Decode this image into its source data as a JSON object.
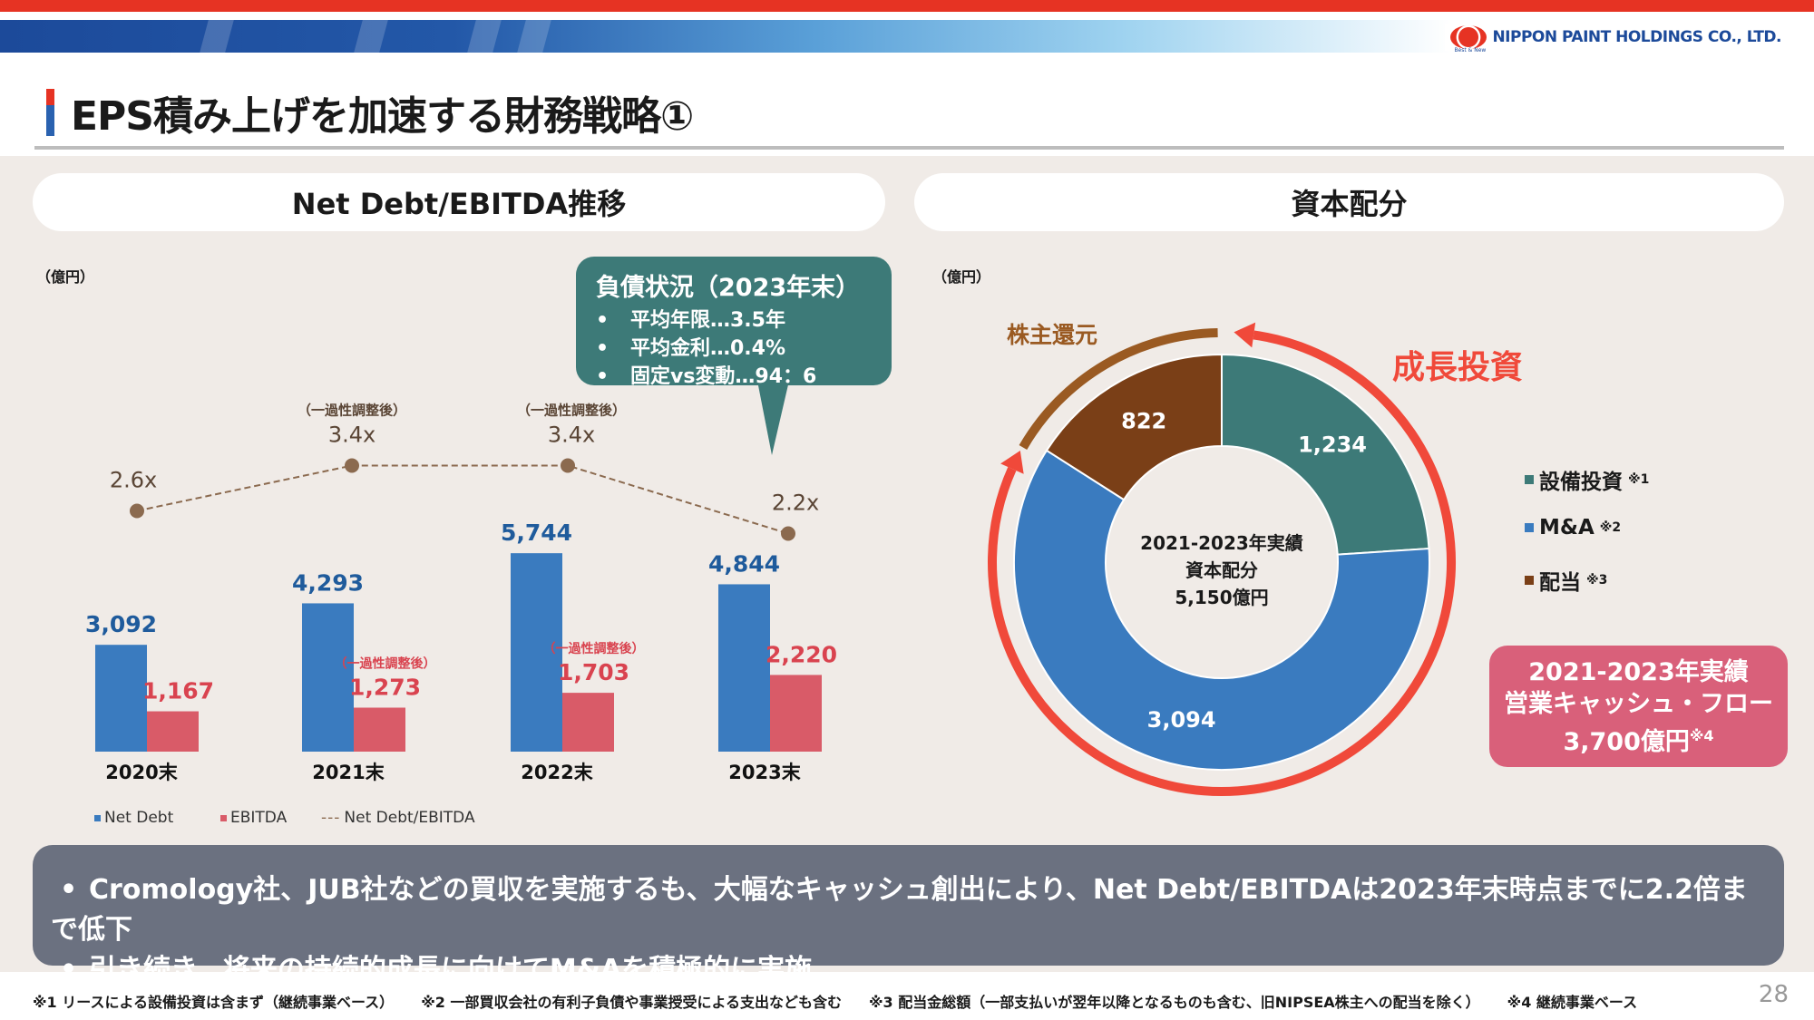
{
  "header": {
    "company": "NIPPON PAINT HOLDINGS CO., LTD.",
    "logo_tagline": "Best & New",
    "title": "EPS積み上げを加速する財務戦略①"
  },
  "left_panel": {
    "heading": "Net Debt/EBITDA推移",
    "unit": "（億円）",
    "callout": {
      "title": "負債状況（2023年末）",
      "items": [
        "平均年限…3.5年",
        "平均金利…0.4%",
        "固定vs変動…94：6"
      ]
    },
    "legend": [
      "Net Debt",
      "EBITDA",
      "Net Debt/EBITDA"
    ]
  },
  "right_panel": {
    "heading": "資本配分",
    "unit": "（億円）",
    "shareholder_return_label": "株主還元",
    "growth_investment_label": "成長投資",
    "legend": [
      {
        "label": "設備投資",
        "note": "※1"
      },
      {
        "label": "M&A",
        "note": "※2"
      },
      {
        "label": "配当",
        "note": "※3"
      }
    ],
    "center": [
      "2021-2023年実績",
      "資本配分",
      "5,150億円"
    ],
    "cashflow_box": {
      "line1": "2021-2023年実績",
      "line2": "営業キャッシュ・フロー",
      "line3": "3,700億円",
      "note": "※4"
    }
  },
  "summary": [
    "Cromology社、JUB社などの買収を実施するも、大幅なキャッシュ創出により、Net Debt/EBITDAは2023年末時点までに2.2倍まで低下",
    "引き続き、将来の持続的成長に向けてM&Aを積極的に実施"
  ],
  "footnotes": [
    "※1 リースによる設備投資は含まず（継続事業ベース）",
    "※2 一部買収会社の有利子負債や事業授受による支出なども含む",
    "※3 配当金総額（一部支払いが翌年以降となるものも含む、旧NIPSEA株主への配当を除く）",
    "※4 継続事業ベース"
  ],
  "page_number": "28",
  "colors": {
    "net_debt": "#3a7bbf",
    "ebitda": "#d95b68",
    "ratio_line": "#8b6a4f",
    "capex": "#3d7a78",
    "ma": "#3a7bbf",
    "dividend": "#7a3f17",
    "growth_arrow": "#f0493a",
    "return_arrow": "#9a5a22"
  },
  "chart_data": [
    {
      "type": "bar",
      "title": "Net Debt/EBITDA推移",
      "ylabel": "億円",
      "categories": [
        "2020末",
        "2021末",
        "2022末",
        "2023末"
      ],
      "series": [
        {
          "name": "Net Debt",
          "values": [
            3092,
            4293,
            5744,
            4844
          ],
          "labels": [
            "3,092",
            "4,293",
            "5,744",
            "4,844"
          ]
        },
        {
          "name": "EBITDA",
          "values": [
            1167,
            1273,
            1703,
            2220
          ],
          "labels": [
            "1,167",
            "1,273",
            "1,703",
            "2,220"
          ],
          "notes": [
            "",
            "（一過性調整後）",
            "（一過性調整後）",
            ""
          ]
        },
        {
          "name": "Net Debt/EBITDA",
          "type": "line",
          "values": [
            2.6,
            3.4,
            3.4,
            2.2
          ],
          "labels": [
            "2.6x",
            "3.4x",
            "3.4x",
            "2.2x"
          ],
          "notes": [
            "",
            "（一過性調整後）",
            "（一過性調整後）",
            ""
          ]
        }
      ]
    },
    {
      "type": "pie",
      "title": "資本配分",
      "total": 5150,
      "slices": [
        {
          "name": "設備投資",
          "value": 1234,
          "label": "1,234"
        },
        {
          "name": "M&A",
          "value": 3094,
          "label": "3,094"
        },
        {
          "name": "配当",
          "value": 822,
          "label": "822"
        }
      ]
    }
  ]
}
